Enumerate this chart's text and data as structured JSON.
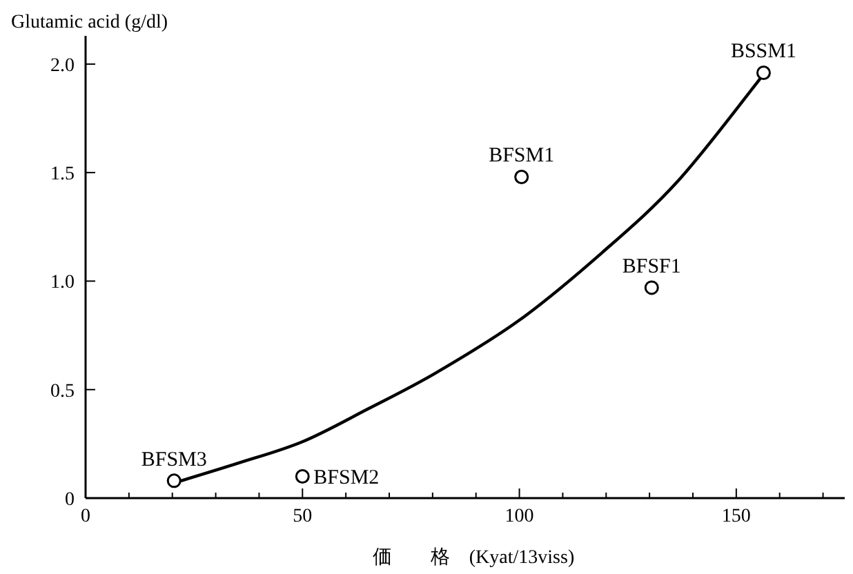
{
  "chart_data": {
    "type": "scatter",
    "ylabel": "Glutamic acid (g/dl)",
    "xlabel": "価　　格　(Kyat/13viss)",
    "xlim": [
      0,
      175
    ],
    "ylim": [
      0,
      2.13
    ],
    "xticks": [
      0,
      {
        "value": 10,
        "label": null
      },
      {
        "value": 20,
        "label": null
      },
      {
        "value": 30,
        "label": null
      },
      {
        "value": 40,
        "label": null
      },
      50,
      {
        "value": 60,
        "label": null
      },
      {
        "value": 70,
        "label": null
      },
      {
        "value": 80,
        "label": null
      },
      {
        "value": 90,
        "label": null
      },
      100,
      {
        "value": 110,
        "label": null
      },
      {
        "value": 120,
        "label": null
      },
      {
        "value": 130,
        "label": null
      },
      {
        "value": 140,
        "label": null
      },
      150,
      {
        "value": 160,
        "label": null
      },
      {
        "value": 170,
        "label": null
      }
    ],
    "yticks": [
      0,
      0.5,
      {
        "value": 1,
        "label": "1.0"
      },
      1.5,
      {
        "value": 2,
        "label": "2.0"
      }
    ],
    "grid": false,
    "legend": false,
    "series": [
      {
        "color": "#000000",
        "marker": "circle",
        "x": [
          20.4,
          50,
          100.5,
          130.5,
          156.3
        ],
        "values": [
          0.08,
          0.1,
          1.48,
          0.97,
          1.96
        ]
      },
      {
        "type": "line",
        "color": "#000000",
        "line_style": "solid",
        "x": [
          20.4,
          35,
          50,
          65,
          81,
          100,
          119,
          136.5,
          155,
          156.3
        ],
        "values": [
          0.07,
          0.16,
          0.26,
          0.41,
          0.58,
          0.82,
          1.13,
          1.46,
          1.92,
          1.96
        ]
      }
    ],
    "annotations": [
      {
        "text": "BFSM3",
        "x": 20.4,
        "y": 0.08
      },
      {
        "text": "BFSM2",
        "x": 50,
        "y": 0.1
      },
      {
        "text": "BFSM1",
        "x": 100.5,
        "y": 1.48
      },
      {
        "text": "BFSF1",
        "x": 130.5,
        "y": 0.97
      },
      {
        "text": "BSSM1",
        "x": 156.3,
        "y": 1.96
      }
    ]
  }
}
